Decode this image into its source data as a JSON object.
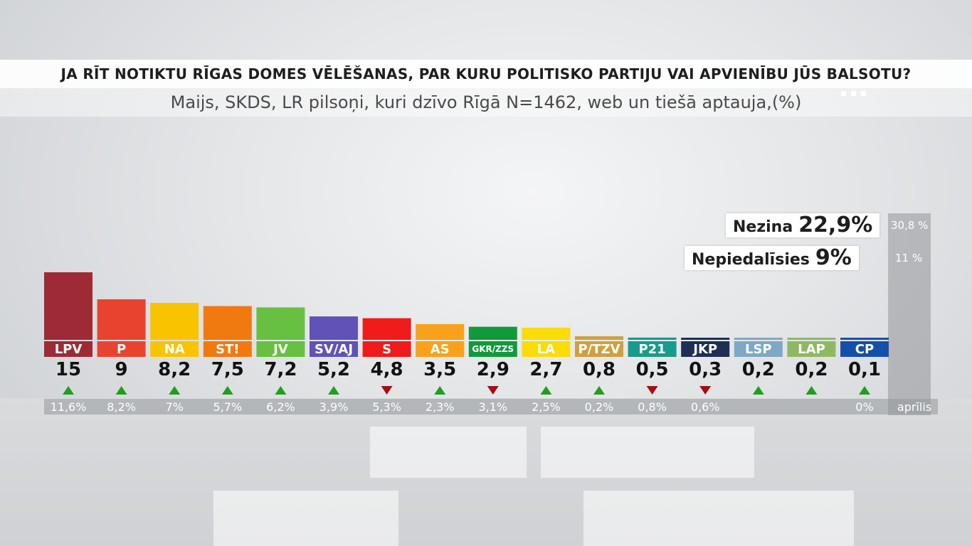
{
  "header": {
    "title": "JA RĪT NOTIKTU RĪGAS DOMES VĒLĒŠANAS, PAR KURU POLITISKO PARTIJU VAI APVIENĪBU JŪS BALSOTU?",
    "subtitle": "Maijs, SKDS, LR pilsoņi, kuri dzīvo Rīgā N=1462, web un tiešā aptauja,(%)"
  },
  "undecided": {
    "nezina_label": "Nezina",
    "nezina_value": "22,9%",
    "nezina_prev": "30,8 %",
    "nepiedalisies_label": "Nepiedalīsies",
    "nepiedalisies_value": "9%",
    "nepiedalisies_prev": "11 %"
  },
  "prev_period_label": "aprīlis",
  "chart_data": {
    "type": "bar",
    "categories": [
      "LPV",
      "P",
      "NA",
      "ST!",
      "JV",
      "SV/AJ",
      "S",
      "AS",
      "GKR/ZZS",
      "LA",
      "P/TZV",
      "P21",
      "JKP",
      "LSP",
      "LAP",
      "CP"
    ],
    "values": [
      15,
      9,
      8.2,
      7.5,
      7.2,
      5.2,
      4.8,
      3.5,
      2.9,
      2.7,
      0.8,
      0.5,
      0.3,
      0.2,
      0.2,
      0.1
    ],
    "value_labels": [
      "15",
      "9",
      "8,2",
      "7,5",
      "7,2",
      "5,2",
      "4,8",
      "3,5",
      "2,9",
      "2,7",
      "0,8",
      "0,5",
      "0,3",
      "0,2",
      "0,2",
      "0,1"
    ],
    "trend": [
      "up",
      "up",
      "up",
      "up",
      "up",
      "up",
      "down",
      "up",
      "down",
      "up",
      "up",
      "down",
      "down",
      "up",
      "up",
      "up"
    ],
    "previous_labels": [
      "11,6%",
      "8,2%",
      "7%",
      "5,7%",
      "6,2%",
      "3,9%",
      "5,3%",
      "2,3%",
      "3,1%",
      "2,5%",
      "0,2%",
      "0,8%",
      "0,6%",
      "",
      "",
      "0%"
    ],
    "colors": [
      "#9e2a35",
      "#e8432f",
      "#f9c300",
      "#f07a10",
      "#67c041",
      "#6152b8",
      "#f01b1b",
      "#f9a11b",
      "#119a3c",
      "#f9dc0a",
      "#d0a040",
      "#1a9a8a",
      "#1f2e55",
      "#7ea8c5",
      "#8fb865",
      "#1450a8"
    ],
    "ylim": [
      0,
      15
    ]
  }
}
